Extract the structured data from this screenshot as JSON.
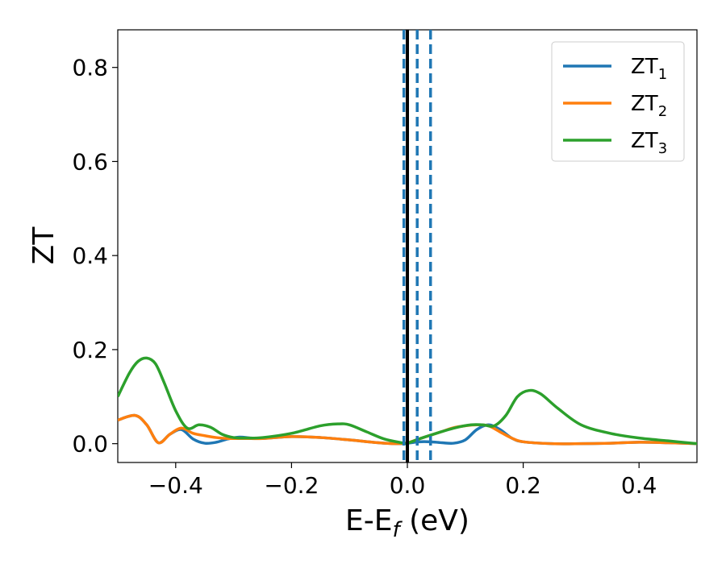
{
  "chart_data": {
    "type": "line",
    "xlabel": "E-E",
    "xlabel_sub": "f",
    "xlabel_unit": " (eV)",
    "ylabel": "ZT",
    "xlim": [
      -0.5,
      0.5
    ],
    "ylim": [
      -0.04,
      0.88
    ],
    "xticks": [
      -0.4,
      -0.2,
      0.0,
      0.2,
      0.4
    ],
    "xtick_labels": [
      "−0.4",
      "−0.2",
      "0.0",
      "0.2",
      "0.4"
    ],
    "yticks": [
      0.0,
      0.2,
      0.4,
      0.6,
      0.8
    ],
    "ytick_labels": [
      "0.0",
      "0.2",
      "0.4",
      "0.6",
      "0.8"
    ],
    "grid": false,
    "legend_position": "top-right",
    "vertical_lines": [
      {
        "x": 0.0,
        "style": "solid",
        "color": "#000000"
      },
      {
        "x": -0.006,
        "style": "dashed",
        "color": "#1f77b4"
      },
      {
        "x": 0.017,
        "style": "dashed",
        "color": "#1f77b4"
      },
      {
        "x": 0.04,
        "style": "dashed",
        "color": "#1f77b4"
      }
    ],
    "series": [
      {
        "name": "ZT",
        "name_sub": "1",
        "color": "#1f77b4",
        "x": [
          -0.5,
          -0.47,
          -0.45,
          -0.43,
          -0.41,
          -0.39,
          -0.37,
          -0.35,
          -0.33,
          -0.31,
          -0.29,
          -0.27,
          -0.25,
          -0.2,
          -0.15,
          -0.1,
          -0.05,
          -0.02,
          0.0,
          0.02,
          0.04,
          0.06,
          0.08,
          0.1,
          0.12,
          0.14,
          0.16,
          0.18,
          0.2,
          0.25,
          0.3,
          0.35,
          0.4,
          0.45,
          0.5
        ],
        "values": [
          0.05,
          0.06,
          0.04,
          0.002,
          0.02,
          0.03,
          0.01,
          0.001,
          0.003,
          0.01,
          0.014,
          0.012,
          0.011,
          0.015,
          0.013,
          0.008,
          0.002,
          0.0,
          0.001,
          0.004,
          0.004,
          0.002,
          0.001,
          0.008,
          0.03,
          0.04,
          0.03,
          0.012,
          0.004,
          0.0,
          0.0,
          0.001,
          0.003,
          0.002,
          0.0
        ]
      },
      {
        "name": "ZT",
        "name_sub": "2",
        "color": "#ff7f0e",
        "x": [
          -0.5,
          -0.47,
          -0.45,
          -0.43,
          -0.41,
          -0.39,
          -0.37,
          -0.35,
          -0.33,
          -0.31,
          -0.29,
          -0.27,
          -0.25,
          -0.2,
          -0.15,
          -0.1,
          -0.05,
          -0.02,
          0.0,
          0.02,
          0.04,
          0.06,
          0.08,
          0.1,
          0.12,
          0.14,
          0.16,
          0.18,
          0.2,
          0.25,
          0.3,
          0.35,
          0.4,
          0.45,
          0.5
        ],
        "values": [
          0.05,
          0.06,
          0.04,
          0.002,
          0.02,
          0.033,
          0.022,
          0.017,
          0.013,
          0.011,
          0.011,
          0.011,
          0.011,
          0.015,
          0.013,
          0.008,
          0.002,
          0.0,
          0.002,
          0.01,
          0.018,
          0.026,
          0.034,
          0.038,
          0.04,
          0.038,
          0.025,
          0.012,
          0.004,
          0.0,
          0.0,
          0.001,
          0.003,
          0.002,
          0.0
        ]
      },
      {
        "name": "ZT",
        "name_sub": "3",
        "color": "#2ca02c",
        "x": [
          -0.5,
          -0.48,
          -0.465,
          -0.45,
          -0.435,
          -0.42,
          -0.4,
          -0.38,
          -0.36,
          -0.34,
          -0.32,
          -0.3,
          -0.28,
          -0.25,
          -0.2,
          -0.15,
          -0.12,
          -0.1,
          -0.07,
          -0.04,
          -0.01,
          0.0,
          0.02,
          0.05,
          0.08,
          0.11,
          0.13,
          0.15,
          0.17,
          0.19,
          0.21,
          0.23,
          0.26,
          0.3,
          0.35,
          0.4,
          0.45,
          0.5
        ],
        "values": [
          0.1,
          0.15,
          0.175,
          0.182,
          0.17,
          0.13,
          0.07,
          0.033,
          0.04,
          0.035,
          0.02,
          0.013,
          0.012,
          0.013,
          0.022,
          0.038,
          0.042,
          0.04,
          0.025,
          0.01,
          0.002,
          0.001,
          0.01,
          0.022,
          0.033,
          0.04,
          0.04,
          0.038,
          0.06,
          0.1,
          0.113,
          0.106,
          0.075,
          0.04,
          0.022,
          0.012,
          0.006,
          0.0
        ]
      }
    ]
  }
}
